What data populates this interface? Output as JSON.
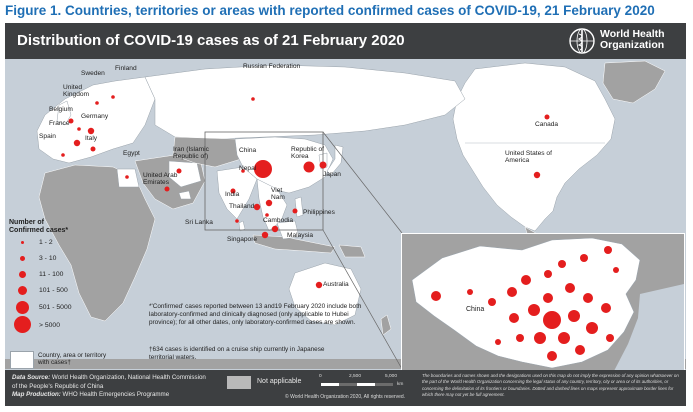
{
  "figure_title": "Figure 1. Countries, territories or areas with reported confirmed cases of COVID-19, 21 February 2020",
  "map": {
    "title": "Distribution of COVID-19 cases as of 21 February 2020",
    "who_logo_text_line1": "World Health",
    "who_logo_text_line2": "Organization",
    "colors": {
      "ocean": "#c6cfd8",
      "land": "#a2a2a2",
      "header": "#3d3f41",
      "case_bubble": "#e41e1e",
      "china_highlight": "#ffffff"
    },
    "countries": [
      {
        "name": "Russian Federation",
        "category": "1 - 2"
      },
      {
        "name": "Finland",
        "category": "1 - 2"
      },
      {
        "name": "Sweden",
        "category": "1 - 2"
      },
      {
        "name": "United Kingdom",
        "category": "3 - 10"
      },
      {
        "name": "Belgium",
        "category": "1 - 2"
      },
      {
        "name": "Germany",
        "category": "11 - 100"
      },
      {
        "name": "France",
        "category": "11 - 100"
      },
      {
        "name": "Spain",
        "category": "1 - 2"
      },
      {
        "name": "Italy",
        "category": "3 - 10"
      },
      {
        "name": "Egypt",
        "category": "1 - 2"
      },
      {
        "name": "Iran (Islamic Republic of)",
        "category": "3 - 10"
      },
      {
        "name": "United Arab Emirates",
        "category": "3 - 10"
      },
      {
        "name": "India",
        "category": "3 - 10"
      },
      {
        "name": "Nepal",
        "category": "1 - 2"
      },
      {
        "name": "Sri Lanka",
        "category": "1 - 2"
      },
      {
        "name": "China",
        "category": "> 5000"
      },
      {
        "name": "Republic of Korea",
        "category": "101 - 500"
      },
      {
        "name": "Japan",
        "category": "11 - 100"
      },
      {
        "name": "Viet Nam",
        "category": "11 - 100"
      },
      {
        "name": "Thailand",
        "category": "11 - 100"
      },
      {
        "name": "Cambodia",
        "category": "1 - 2"
      },
      {
        "name": "Philippines",
        "category": "3 - 10"
      },
      {
        "name": "Malaysia",
        "category": "11 - 100"
      },
      {
        "name": "Singapore",
        "category": "11 - 100"
      },
      {
        "name": "Australia",
        "category": "11 - 100"
      },
      {
        "name": "Canada",
        "category": "3 - 10"
      },
      {
        "name": "United States of America",
        "category": "11 - 100"
      }
    ],
    "labels": {
      "russia": "Russian Federation",
      "finland": "Finland",
      "sweden": "Sweden",
      "uk": "United Kingdom",
      "belgium": "Belgium",
      "germany": "Germany",
      "france": "France",
      "spain": "Spain",
      "italy": "Italy",
      "egypt": "Egypt",
      "iran": "Iran (Islamic Republic of)",
      "uae": "United Arab Emirates",
      "india": "India",
      "nepal": "Nepal",
      "srilanka": "Sri Lanka",
      "china": "China",
      "korea": "Republic of Korea",
      "japan": "Japan",
      "vietnam": "Viet Nam",
      "thailand": "Thailand",
      "cambodia": "Cambodia",
      "philippines": "Philippines",
      "malaysia": "Malaysia",
      "singapore": "Singapore",
      "australia": "Australia",
      "canada": "Canada",
      "usa": "United States of America",
      "inset_china": "China"
    }
  },
  "legend": {
    "title": "Number of Confirmed cases*",
    "items": [
      {
        "label": "1 - 2"
      },
      {
        "label": "3 - 10"
      },
      {
        "label": "11 - 100"
      },
      {
        "label": "101 - 500"
      },
      {
        "label": "501 - 5000"
      },
      {
        "label": "> 5000"
      }
    ],
    "area_label": "Country, area or territory with cases†"
  },
  "notes": {
    "note1": "*'Confirmed' cases reported between 13 and19 February 2020 include both laboratory-confirmed and clinically diagnosed (only applicable to Hubei province); for all other dates, only laboratory-confirmed cases are shown.",
    "note2": "†634 cases is identified on a cruise ship currently in Japanese territorial waters."
  },
  "footer": {
    "data_source_label": "Data Source:",
    "data_source_text": "World Health Organization, National Health Commission of the People's Republic of China",
    "map_production_label": "Map Production:",
    "map_production_text": "WHO Health Emergencies Programme",
    "not_applicable": "Not applicable",
    "scale_labels": [
      "0",
      "2,500",
      "5,000"
    ],
    "scale_unit": "km",
    "copyright": "© World Health Organization 2020, All rights reserved.",
    "disclaimer": "The boundaries and names shown and the designations used on this map do not imply the expression of any opinion whatsoever on the part of the World Health Organization concerning the legal status of any country, territory, city or area or of its authorities, or concerning the delimitation of its frontiers or boundaries. Dotted and dashed lines on maps represent approximate border lines for which there may not yet be full agreement."
  }
}
